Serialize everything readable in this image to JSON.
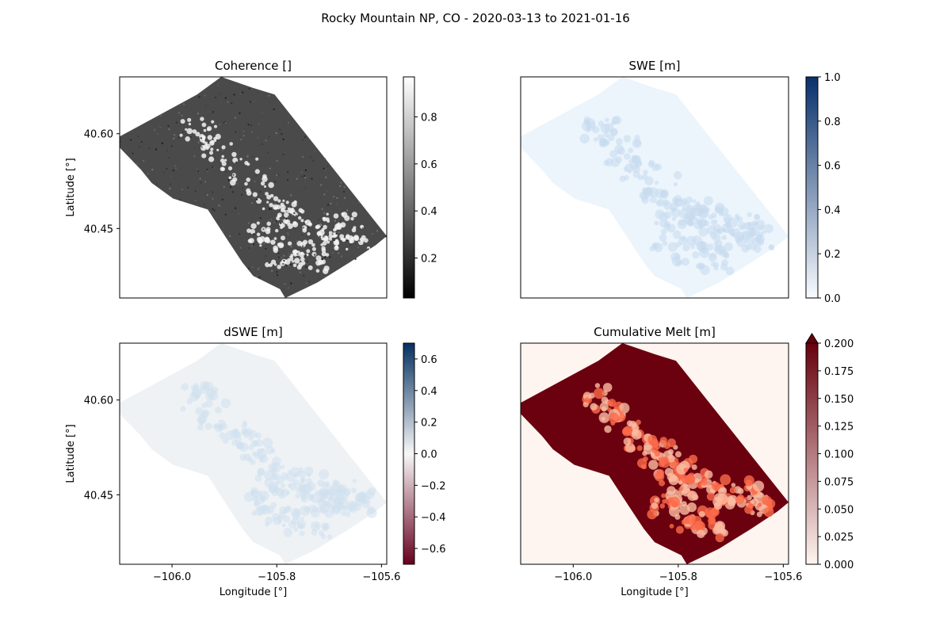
{
  "figure": {
    "suptitle": "Rocky Mountain NP, CO - 2020-03-13 to 2021-01-16"
  },
  "colors": {
    "coherence_low": "#000000",
    "coherence_high": "#ffffff",
    "coherence_mid": "#4a4a4a",
    "swe_low": "#f7fbff",
    "swe_high": "#08306b",
    "swe_fill": "#ecf4fc",
    "dswe_neg": "#67001f",
    "dswe_zero": "#f7f7f7",
    "dswe_pos": "#053061",
    "dswe_fill": "#eef2f5",
    "melt_low": "#fff5f0",
    "melt_high": "#67000d",
    "melt_fill": "#6b000f"
  },
  "chart_data": [
    {
      "id": "coherence",
      "type": "heatmap",
      "title": "Coherence []",
      "colormap": "Greys_r",
      "colorbar": {
        "min": 0.03,
        "max": 0.97,
        "ticks": [
          0.2,
          0.4,
          0.6,
          0.8
        ],
        "tick_labels": [
          "0.2",
          "0.4",
          "0.6",
          "0.8"
        ],
        "extend": "neither"
      },
      "xlabel": "",
      "ylabel": "Latitude [°]",
      "xlim": [
        -106.1,
        -105.59
      ],
      "ylim": [
        40.34,
        40.69
      ],
      "yticks": [
        40.45,
        40.6
      ],
      "ytick_labels": [
        "40.45",
        "40.60"
      ],
      "xticks": [],
      "xtick_labels": []
    },
    {
      "id": "swe",
      "type": "heatmap",
      "title": "SWE [m]",
      "colormap": "Blues",
      "colorbar": {
        "min": 0.0,
        "max": 1.0,
        "ticks": [
          0.0,
          0.2,
          0.4,
          0.6,
          0.8,
          1.0
        ],
        "tick_labels": [
          "0.0",
          "0.2",
          "0.4",
          "0.6",
          "0.8",
          "1.0"
        ],
        "extend": "neither"
      },
      "xlabel": "",
      "ylabel": "",
      "xlim": [
        -106.1,
        -105.59
      ],
      "ylim": [
        40.34,
        40.69
      ],
      "yticks": [],
      "ytick_labels": [],
      "xticks": [],
      "xtick_labels": []
    },
    {
      "id": "dswe",
      "type": "heatmap",
      "title": "dSWE [m]",
      "colormap": "RdBu",
      "colorbar": {
        "min": -0.7,
        "max": 0.7,
        "ticks": [
          -0.6,
          -0.4,
          -0.2,
          0.0,
          0.2,
          0.4,
          0.6
        ],
        "tick_labels": [
          "−0.6",
          "−0.4",
          "−0.2",
          "0.0",
          "0.2",
          "0.4",
          "0.6"
        ],
        "extend": "neither"
      },
      "xlabel": "Longitude [°]",
      "ylabel": "Latitude [°]",
      "xlim": [
        -106.1,
        -105.59
      ],
      "ylim": [
        40.34,
        40.69
      ],
      "yticks": [
        40.45,
        40.6
      ],
      "ytick_labels": [
        "40.45",
        "40.60"
      ],
      "xticks": [
        -106.0,
        -105.8,
        -105.6
      ],
      "xtick_labels": [
        "−106.0",
        "−105.8",
        "−105.6"
      ]
    },
    {
      "id": "melt",
      "type": "heatmap",
      "title": "Cumulative Melt [m]",
      "colormap": "Reds",
      "colorbar": {
        "min": 0.0,
        "max": 0.2,
        "ticks": [
          0.0,
          0.025,
          0.05,
          0.075,
          0.1,
          0.125,
          0.15,
          0.175,
          0.2
        ],
        "tick_labels": [
          "0.000",
          "0.025",
          "0.050",
          "0.075",
          "0.100",
          "0.125",
          "0.150",
          "0.175",
          "0.200"
        ],
        "extend": "max"
      },
      "xlabel": "Longitude [°]",
      "ylabel": "",
      "xlim": [
        -106.1,
        -105.59
      ],
      "ylim": [
        40.34,
        40.69
      ],
      "yticks": [],
      "ytick_labels": [],
      "xticks": [
        -106.0,
        -105.8,
        -105.6
      ],
      "xtick_labels": [
        "−106.0",
        "−105.8",
        "−105.6"
      ]
    }
  ]
}
